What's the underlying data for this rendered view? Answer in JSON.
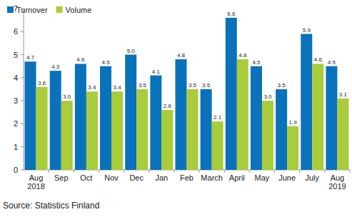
{
  "chart_data": {
    "type": "bar",
    "categories": [
      "Aug 2018",
      "Sep",
      "Oct",
      "Nov",
      "Dec",
      "Jan",
      "Feb",
      "March",
      "April",
      "May",
      "June",
      "July",
      "Aug 2019"
    ],
    "series": [
      {
        "name": "Turnover",
        "color": "#0a72ba",
        "values": [
          4.7,
          4.3,
          4.6,
          4.5,
          5.0,
          4.1,
          4.8,
          3.5,
          6.6,
          4.5,
          3.5,
          5.9,
          4.5
        ],
        "value_labels": [
          "4.7",
          "4.3",
          "4.6",
          "4.5",
          "5.0",
          "4.1",
          "4.8",
          "3.5",
          "6.6",
          "4.5",
          "3.5",
          "5.9",
          "4.5"
        ]
      },
      {
        "name": "Volume",
        "color": "#a9cc3a",
        "values": [
          3.6,
          3.0,
          3.4,
          3.4,
          3.5,
          2.6,
          3.5,
          2.1,
          4.8,
          3.0,
          1.9,
          4.6,
          3.1
        ],
        "value_labels": [
          "3.6",
          "3.0",
          "3.4",
          "3.4",
          "3.5",
          "2.6",
          "3.5",
          "2.1",
          "4.8",
          "3.0",
          "1.9",
          "4.6",
          "3.1"
        ]
      }
    ],
    "ylim": [
      0,
      7
    ],
    "yticks": [
      0,
      1,
      2,
      3,
      4,
      5,
      6,
      7
    ],
    "grid": false,
    "data_labels": true,
    "legend": "top-left",
    "source": "Source: Statistics Finland"
  }
}
